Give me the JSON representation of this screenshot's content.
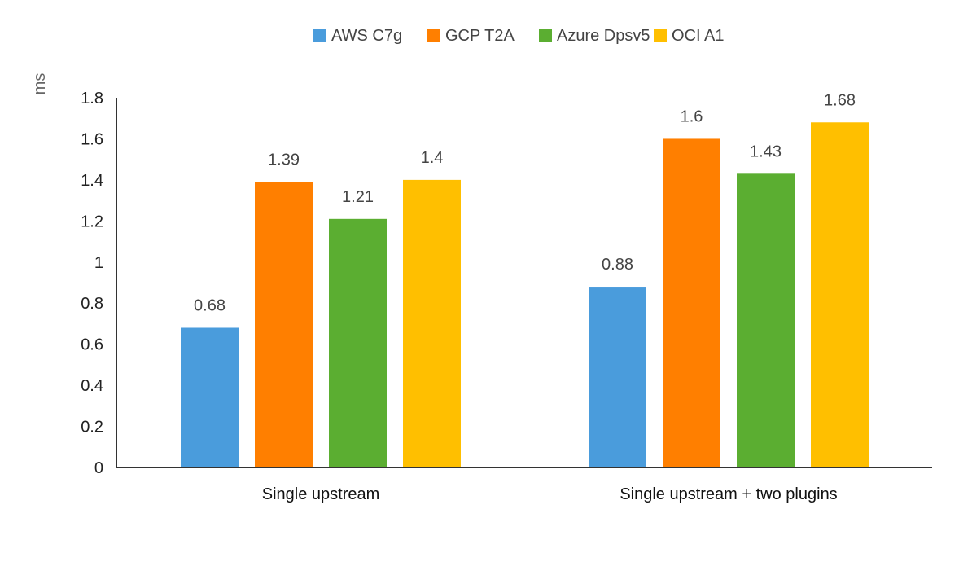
{
  "chart_data": {
    "type": "bar",
    "title": "",
    "xlabel": "",
    "ylabel": "ms",
    "ylim": [
      0,
      1.8
    ],
    "yticks": [
      "0",
      "0.2",
      "0.4",
      "0.6",
      "0.8",
      "1",
      "1.2",
      "1.4",
      "1.6",
      "1.8"
    ],
    "grid": false,
    "legend_position": "top",
    "categories": [
      "Single upstream",
      "Single upstream + two plugins"
    ],
    "series": [
      {
        "name": "AWS C7g",
        "color": "#4A9CDC",
        "values": [
          0.68,
          0.88
        ],
        "labels": [
          "0.68",
          "0.88"
        ]
      },
      {
        "name": "GCP T2A",
        "color": "#FF7F00",
        "values": [
          1.39,
          1.6
        ],
        "labels": [
          "1.39",
          "1.6"
        ]
      },
      {
        "name": "Azure Dpsv5",
        "color": "#5BAE31",
        "values": [
          1.21,
          1.43
        ],
        "labels": [
          "1.21",
          "1.43"
        ]
      },
      {
        "name": "OCI A1",
        "color": "#FFBF00",
        "values": [
          1.4,
          1.68
        ],
        "labels": [
          "1.4",
          "1.68"
        ]
      }
    ]
  }
}
